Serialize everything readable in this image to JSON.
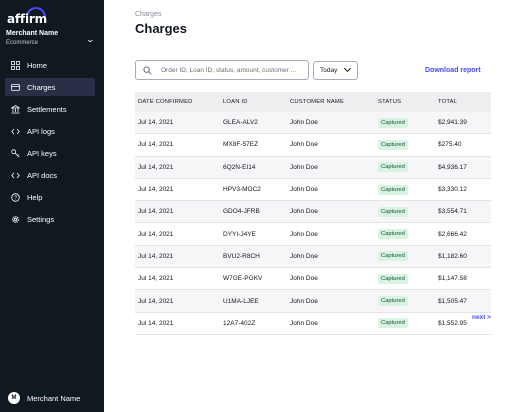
{
  "brand": {
    "logo_text": "affirm",
    "accent": "#4a4af4"
  },
  "merchant": {
    "name": "Merchant Name",
    "subtitle": "Ecommerce"
  },
  "nav": [
    {
      "label": "Home",
      "icon": "grid-icon",
      "active": false
    },
    {
      "label": "Charges",
      "icon": "card-icon",
      "active": true
    },
    {
      "label": "Settlements",
      "icon": "bank-icon",
      "active": false
    },
    {
      "label": "API logs",
      "icon": "code-icon",
      "active": false
    },
    {
      "label": "API keys",
      "icon": "key-icon",
      "active": false
    },
    {
      "label": "API docs",
      "icon": "code-icon",
      "active": false
    },
    {
      "label": "Help",
      "icon": "help-icon",
      "active": false
    },
    {
      "label": "Settings",
      "icon": "gear-icon",
      "active": false
    }
  ],
  "footer": {
    "avatar_initial": "M",
    "name": "Merchant Name"
  },
  "page": {
    "breadcrumb": "Charges",
    "title": "Charges"
  },
  "search": {
    "placeholder": "Order ID, Loan ID, status, amount, customer ..."
  },
  "filter": {
    "date_value": "Today"
  },
  "actions": {
    "download": "Download report",
    "next": "next >"
  },
  "table": {
    "headers": [
      "DATE CONFIRMED",
      "LOAN ID",
      "CUSTOMER NAME",
      "STATUS",
      "TOTAL"
    ],
    "rows": [
      {
        "date": "Jul 14, 2021",
        "loan_id": "GLEA-ALV2",
        "customer": "John Doe",
        "status": "Captured",
        "total": "$2,941.39"
      },
      {
        "date": "Jul 14, 2021",
        "loan_id": "MX8F-57EZ",
        "customer": "John Doe",
        "status": "Captured",
        "total": "$275.40"
      },
      {
        "date": "Jul 14, 2021",
        "loan_id": "6Q2N-EI14",
        "customer": "John Doe",
        "status": "Captured",
        "total": "$4,936.17"
      },
      {
        "date": "Jul 14, 2021",
        "loan_id": "HPV3-MOC2",
        "customer": "John Doe",
        "status": "Captured",
        "total": "$3,330.12"
      },
      {
        "date": "Jul 14, 2021",
        "loan_id": "GDO4-JFRB",
        "customer": "John Doe",
        "status": "Captured",
        "total": "$3,554.71"
      },
      {
        "date": "Jul 14, 2021",
        "loan_id": "DYYI-J4YE",
        "customer": "John Doe",
        "status": "Captured",
        "total": "$2,666.42"
      },
      {
        "date": "Jul 14, 2021",
        "loan_id": "BVU2-R8CH",
        "customer": "John Doe",
        "status": "Captured",
        "total": "$1,182.60"
      },
      {
        "date": "Jul 14, 2021",
        "loan_id": "W7GE-PGKV",
        "customer": "John Doe",
        "status": "Captured",
        "total": "$1,147.58"
      },
      {
        "date": "Jul 14, 2021",
        "loan_id": "U1MA-LJEE",
        "customer": "John Doe",
        "status": "Captured",
        "total": "$1,505.47"
      },
      {
        "date": "Jul 14, 2021",
        "loan_id": "12A7-402Z",
        "customer": "John Doe",
        "status": "Captured",
        "total": "$1,552.95"
      }
    ]
  }
}
